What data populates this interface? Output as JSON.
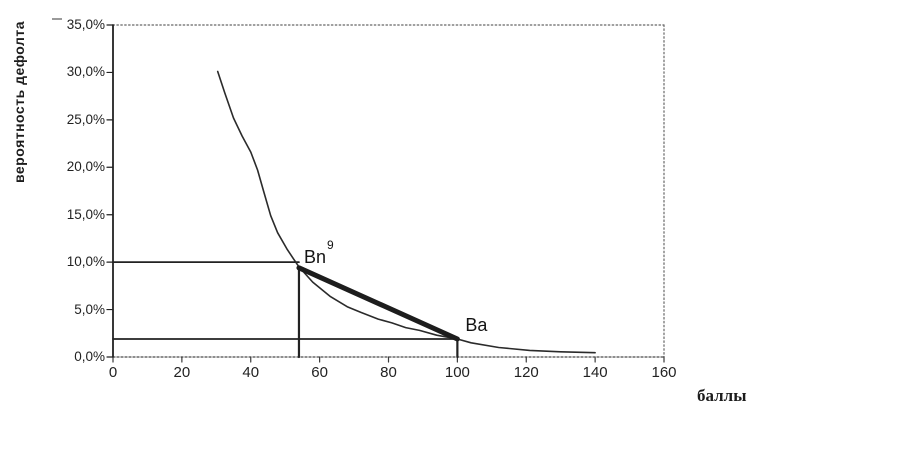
{
  "colors": {
    "ink": "#222222",
    "curve": "#2b2b2b",
    "chord": "#1d1d1d",
    "border_dotted": "#666666",
    "label": "#1c1c1c"
  },
  "chart_data": {
    "type": "line",
    "title": "",
    "xlabel": "баллы",
    "ylabel": "вероятность дефолта",
    "xlim": [
      0,
      160
    ],
    "ylim": [
      0,
      35
    ],
    "grid": false,
    "legend": "none",
    "x_axis": {
      "ticks": [
        {
          "v": 0,
          "label": "0"
        },
        {
          "v": 20,
          "label": "20"
        },
        {
          "v": 40,
          "label": "40"
        },
        {
          "v": 60,
          "label": "60"
        },
        {
          "v": 80,
          "label": "80"
        },
        {
          "v": 100,
          "label": "100"
        },
        {
          "v": 120,
          "label": "120"
        },
        {
          "v": 140,
          "label": "140"
        },
        {
          "v": 160,
          "label": "160"
        }
      ]
    },
    "y_axis": {
      "ticks": [
        {
          "v": 0,
          "label": "0,0%"
        },
        {
          "v": 5,
          "label": "5,0%"
        },
        {
          "v": 10,
          "label": "10,0%"
        },
        {
          "v": 15,
          "label": "15,0%"
        },
        {
          "v": 20,
          "label": "20,0%"
        },
        {
          "v": 25,
          "label": "25,0%"
        },
        {
          "v": 30,
          "label": "30,0%"
        },
        {
          "v": 35,
          "label": "35,0%"
        }
      ]
    },
    "series": [
      {
        "name": "score-to-default-probability-curve",
        "type": "line",
        "weight": "thin",
        "points": [
          [
            30.4,
            30.1
          ],
          [
            32.5,
            27.8
          ],
          [
            35,
            25.2
          ],
          [
            37.5,
            23.3
          ],
          [
            40,
            21.6
          ],
          [
            42,
            19.7
          ],
          [
            43.8,
            17.4
          ],
          [
            45.8,
            14.9
          ],
          [
            47.8,
            13.1
          ],
          [
            50.5,
            11.4
          ],
          [
            52.5,
            10.3
          ],
          [
            54,
            9.5
          ],
          [
            58,
            7.9
          ],
          [
            63,
            6.4
          ],
          [
            68,
            5.3
          ],
          [
            72,
            4.7
          ],
          [
            77,
            4.0
          ],
          [
            81,
            3.6
          ],
          [
            85,
            3.1
          ],
          [
            89,
            2.8
          ],
          [
            94,
            2.3
          ],
          [
            100,
            1.9
          ],
          [
            104,
            1.5
          ],
          [
            112,
            1.0
          ],
          [
            121,
            0.7
          ],
          [
            130,
            0.55
          ],
          [
            140,
            0.45
          ]
        ]
      },
      {
        "name": "bn-ba-chord",
        "type": "line",
        "weight": "thick",
        "points": [
          [
            54,
            9.4
          ],
          [
            100,
            1.9
          ]
        ]
      }
    ],
    "annotations": [
      {
        "label": "Bn",
        "sup": "9",
        "x": 54,
        "y": 9.4
      },
      {
        "label": "Ba",
        "sup": "",
        "x": 100,
        "y": 1.9
      }
    ],
    "guides": [
      {
        "type": "h",
        "y": 10,
        "x0": 0,
        "x1": 54,
        "w": 1.8
      },
      {
        "type": "h",
        "y": 1.9,
        "x0": 0,
        "x1": 100,
        "w": 1.8
      },
      {
        "type": "v",
        "x": 54,
        "y0": 0,
        "y1": 9.4,
        "w": 2.2
      },
      {
        "type": "v",
        "x": 100,
        "y0": 0,
        "y1": 1.9,
        "w": 2.2
      }
    ]
  }
}
